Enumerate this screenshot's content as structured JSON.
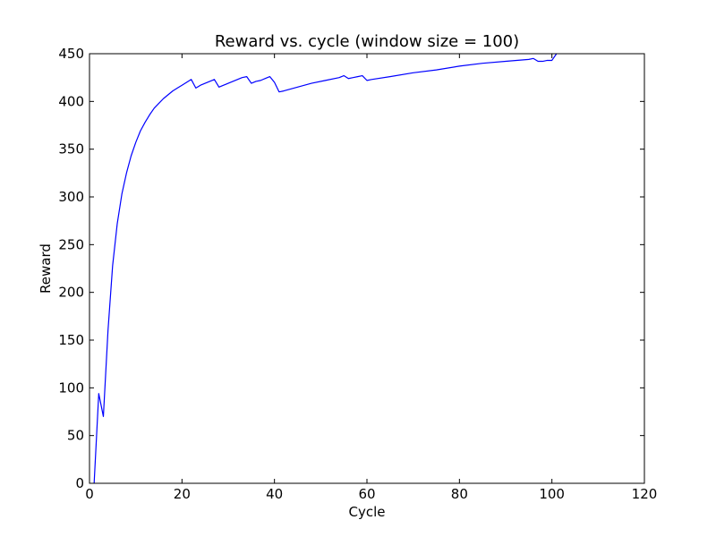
{
  "chart_data": {
    "type": "line",
    "title": "Reward vs. cycle (window size = 100)",
    "xlabel": "Cycle",
    "ylabel": "Reward",
    "xlim": [
      0,
      120
    ],
    "ylim": [
      0,
      450
    ],
    "xticks": [
      0,
      20,
      40,
      60,
      80,
      100,
      120
    ],
    "yticks": [
      0,
      50,
      100,
      150,
      200,
      250,
      300,
      350,
      400,
      450
    ],
    "grid": false,
    "legend": "none",
    "series": [
      {
        "color": "#0000ff",
        "x": [
          1,
          2,
          3,
          4,
          5,
          6,
          7,
          8,
          9,
          10,
          11,
          12,
          13,
          14,
          15,
          16,
          17,
          18,
          19,
          20,
          21,
          22,
          23,
          24,
          25,
          26,
          27,
          28,
          29,
          30,
          31,
          32,
          33,
          34,
          35,
          36,
          37,
          38,
          39,
          40,
          41,
          42,
          45,
          48,
          51,
          54,
          55,
          56,
          57,
          58,
          59,
          60,
          61,
          65,
          70,
          75,
          80,
          85,
          90,
          95,
          96,
          97,
          98,
          99,
          100,
          101
        ],
        "y": [
          0,
          94,
          70,
          160,
          228,
          272,
          303,
          325,
          343,
          357,
          369,
          378,
          386,
          393,
          398,
          403,
          407,
          411,
          414,
          417,
          420,
          423,
          414,
          417,
          419,
          421,
          423,
          415,
          417,
          419,
          421,
          423,
          425,
          426,
          419,
          421,
          422,
          424,
          426,
          420,
          410,
          411,
          415,
          419,
          422,
          425,
          427,
          424,
          425,
          426,
          427,
          422,
          423,
          426,
          430,
          433,
          437,
          440,
          442,
          444,
          445,
          442,
          442,
          443,
          443,
          450
        ]
      }
    ]
  }
}
